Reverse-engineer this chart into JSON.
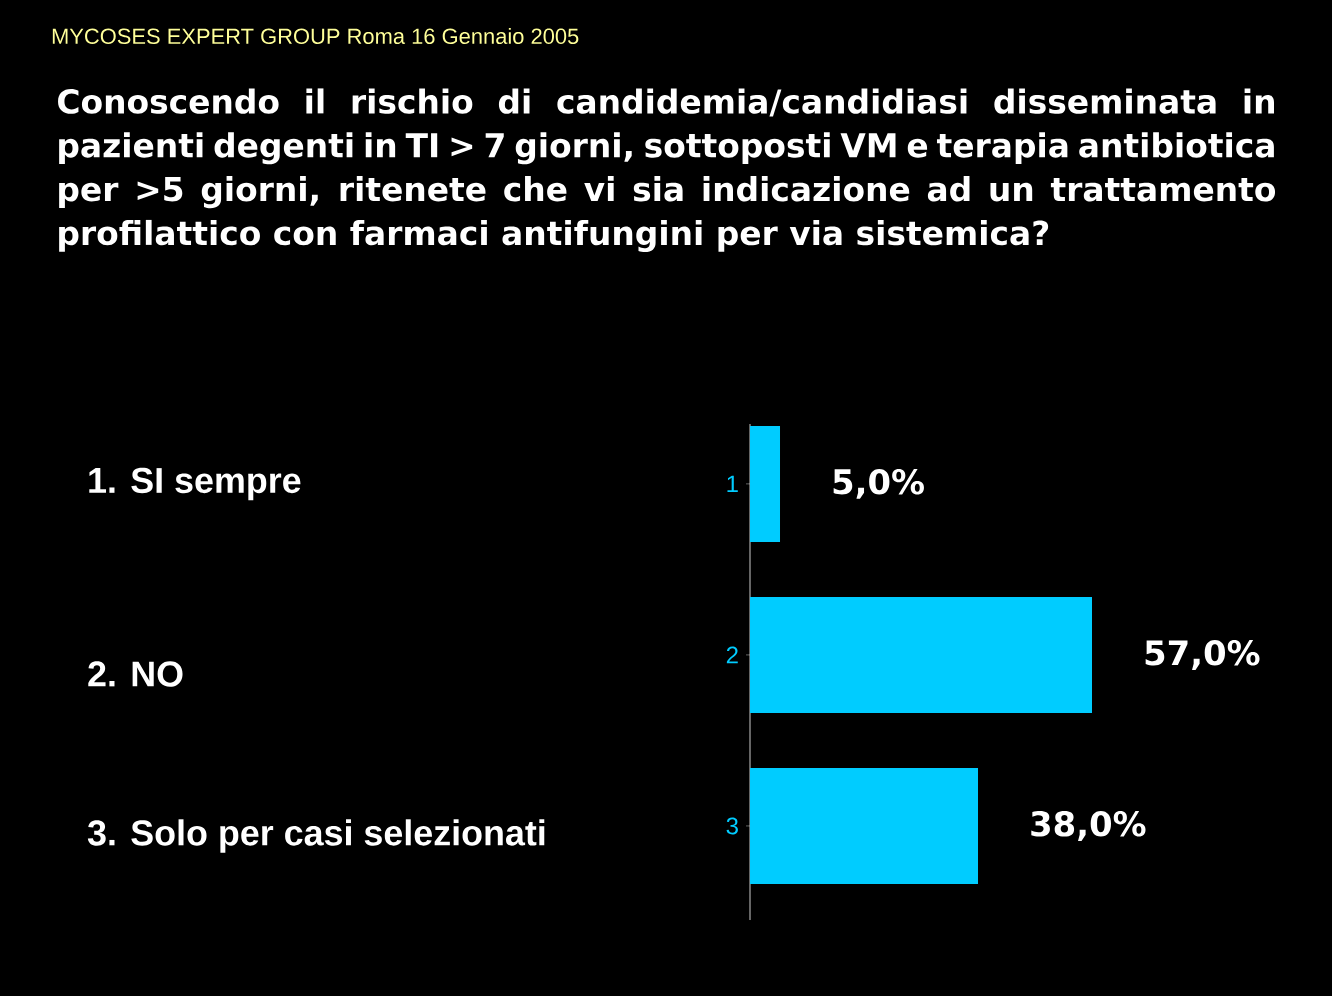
{
  "chart_data": {
    "type": "bar",
    "orientation": "horizontal",
    "title": "Conoscendo il rischio di candidemia/candidiasi disseminata in pazienti degenti in TI > 7 giorni, sottoposti VM e terapia antibiotica per >5 giorni, ritenete che vi sia indicazione ad un trattamento profilattico con farmaci antifungini per via sistemica?",
    "annotations": [
      "MYCOSES EXPERT GROUP Roma 16 Gennaio 2005",
      "1. SI sempre",
      "2. NO",
      "3. Solo per casi selezionati"
    ],
    "categories": [
      "1",
      "2",
      "3"
    ],
    "values": [
      5,
      57,
      38
    ],
    "value_labels": [
      "5,0%",
      "57,0%",
      "38,0%"
    ],
    "color": "#00ccff",
    "tick_labels": "y"
  }
}
